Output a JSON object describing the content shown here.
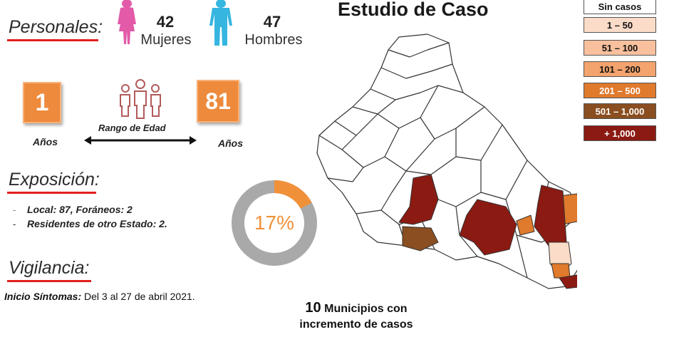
{
  "personales": {
    "title": "Personales:",
    "women": {
      "count": "42",
      "label": "Mujeres",
      "color": "#e25aa8"
    },
    "men": {
      "count": "47",
      "label": "Hombres",
      "color": "#35b6e0"
    }
  },
  "age": {
    "min": "1",
    "max": "81",
    "unit_min": "Años",
    "unit_max": "Años",
    "range_label": "Rango de Edad"
  },
  "exposicion": {
    "title": "Exposición:",
    "items": [
      "Local:  87, Foráneos: 2",
      "Residentes de otro Estado: 2."
    ]
  },
  "donut": {
    "value_label": "17%",
    "fraction": 0.17,
    "fill_color": "#f0913a",
    "track_color": "#a9a9a9"
  },
  "vigilancia": {
    "title": "Vigilancia:",
    "inicio_label": "Inicio Síntomas:",
    "inicio_value": " Del 3 al 27 de abril 2021."
  },
  "map": {
    "title": "Estudio de Caso",
    "footer_number": "10",
    "footer_line1": "Municipios con",
    "footer_line2": "incremento de casos"
  },
  "legend": [
    {
      "label": "Sin casos",
      "bg": "#ffffff",
      "fg": "#111111"
    },
    {
      "label": "1 – 50",
      "bg": "#fbdcc8",
      "fg": "#111111"
    },
    {
      "label": "51 – 100",
      "bg": "#f8c09d",
      "fg": "#111111"
    },
    {
      "label": "101 – 200",
      "bg": "#f3a36d",
      "fg": "#111111"
    },
    {
      "label": "201 – 500",
      "bg": "#e07a2c",
      "fg": "#ffffff"
    },
    {
      "label": "501 – 1,000",
      "bg": "#8a4e20",
      "fg": "#ffffff"
    },
    {
      "label": "+ 1,000",
      "bg": "#8b1a12",
      "fg": "#ffffff"
    }
  ]
}
